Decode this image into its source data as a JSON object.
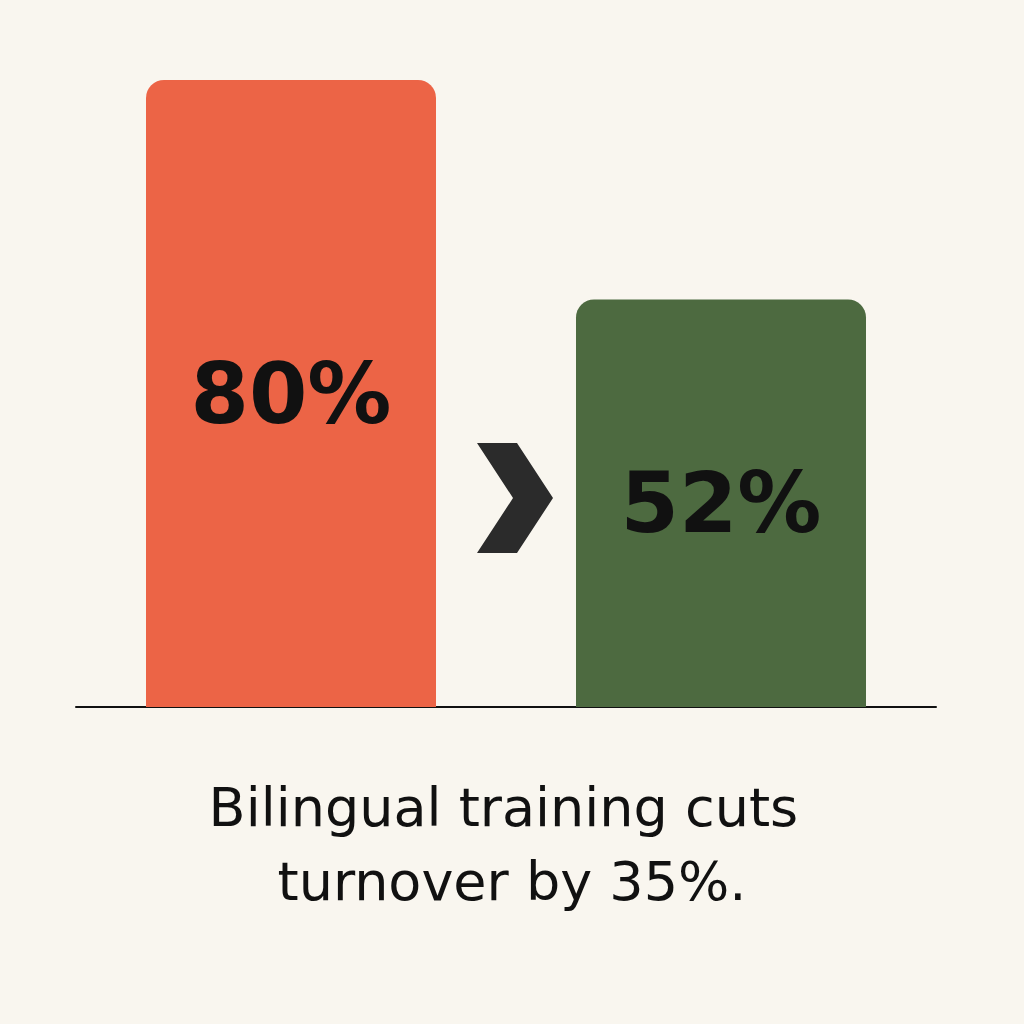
{
  "chart_data": {
    "type": "bar",
    "title": "Bilingual training cuts turnover by 35%.",
    "categories": [
      null,
      null
    ],
    "values": [
      80,
      52
    ],
    "colors": [
      "#ec6446",
      "#4d6a40"
    ],
    "value_labels": [
      "80%",
      "52%"
    ],
    "grid": false
  }
}
